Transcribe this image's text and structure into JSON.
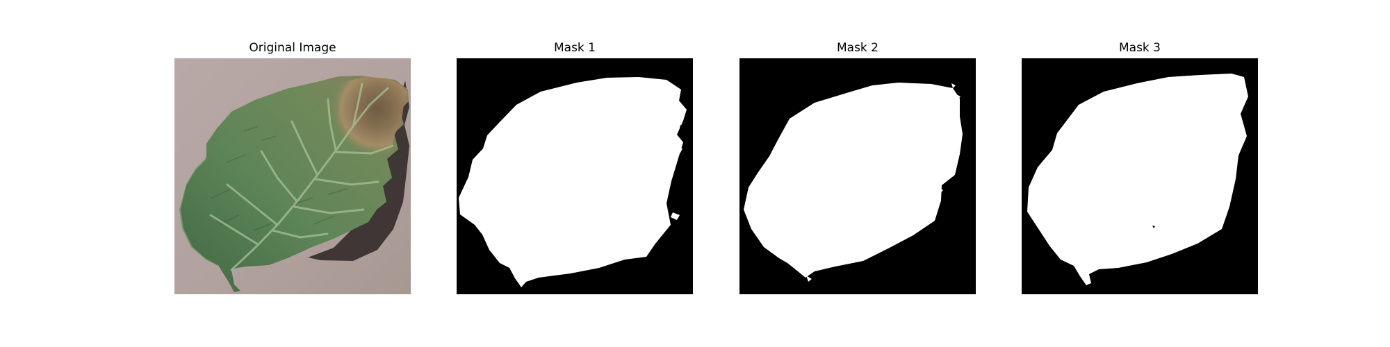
{
  "figure": {
    "panels": [
      {
        "title": "Original Image",
        "kind": "photo",
        "subject": "leaf"
      },
      {
        "title": "Mask 1",
        "kind": "mask"
      },
      {
        "title": "Mask 2",
        "kind": "mask"
      },
      {
        "title": "Mask 3",
        "kind": "mask"
      }
    ]
  },
  "colors": {
    "background": "#ffffff",
    "mask_background": "#000000",
    "mask_foreground": "#ffffff",
    "surface": "#b9aaa7",
    "leaf_green": "#5f8457",
    "leaf_dark": "#3f6340",
    "leaf_vein": "#a9c49a",
    "lesion": "#8e7758",
    "lesion_dark": "#5b4738",
    "shadow": "#332b2a"
  }
}
